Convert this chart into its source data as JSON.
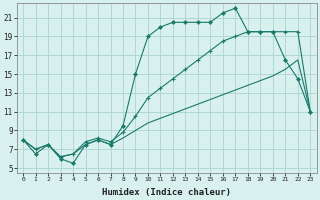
{
  "xlabel": "Humidex (Indice chaleur)",
  "x": [
    0,
    1,
    2,
    3,
    4,
    5,
    6,
    7,
    8,
    9,
    10,
    11,
    12,
    13,
    14,
    15,
    16,
    17,
    18,
    19,
    20,
    21,
    22,
    23
  ],
  "line1_y": [
    8.0,
    6.5,
    7.5,
    6.0,
    5.5,
    7.5,
    8.0,
    7.5,
    9.5,
    15.0,
    19.0,
    20.0,
    20.5,
    20.5,
    20.5,
    20.5,
    21.5,
    22.0,
    19.5,
    19.5,
    19.5,
    16.5,
    14.5,
    11.0
  ],
  "line2_y": [
    8.0,
    7.0,
    7.5,
    6.2,
    6.5,
    7.8,
    8.2,
    7.8,
    8.8,
    10.5,
    12.5,
    13.5,
    14.5,
    15.5,
    16.5,
    17.5,
    18.5,
    19.0,
    19.5,
    19.5,
    19.5,
    19.5,
    19.5,
    11.0
  ],
  "line3_y": [
    8.0,
    7.0,
    7.5,
    6.2,
    6.5,
    7.5,
    8.0,
    7.5,
    8.2,
    9.0,
    9.8,
    10.3,
    10.8,
    11.3,
    11.8,
    12.3,
    12.8,
    13.3,
    13.8,
    14.3,
    14.8,
    15.5,
    16.5,
    11.0
  ],
  "line_color": "#1a7a6a",
  "bg_color": "#d8f0ee",
  "grid_color": "#aad4d0",
  "ylim": [
    5,
    22
  ],
  "xlim": [
    -0.5,
    23.5
  ],
  "yticks": [
    5,
    7,
    9,
    11,
    13,
    15,
    17,
    19,
    21
  ],
  "xticks": [
    0,
    1,
    2,
    3,
    4,
    5,
    6,
    7,
    8,
    9,
    10,
    11,
    12,
    13,
    14,
    15,
    16,
    17,
    18,
    19,
    20,
    21,
    22,
    23
  ]
}
